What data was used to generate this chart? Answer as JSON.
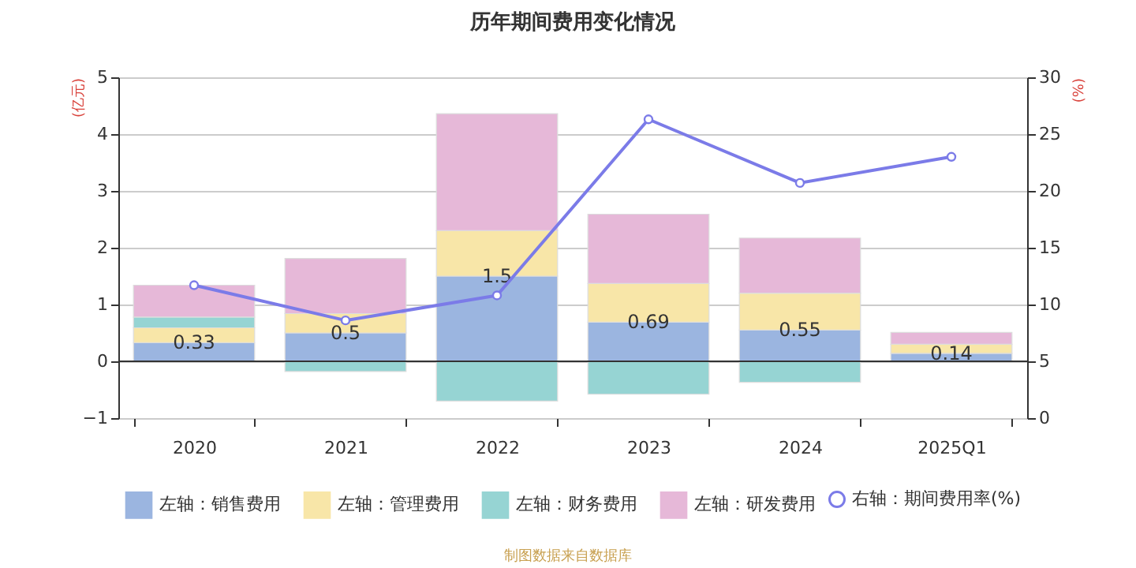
{
  "chart_data": {
    "type": "bar",
    "stacked": true,
    "title": "历年期间费用变化情况",
    "ylabel": "(亿元)",
    "y2label": "(%)",
    "categories": [
      "2020",
      "2021",
      "2022",
      "2023",
      "2024",
      "2025Q1"
    ],
    "series": [
      {
        "name": "左轴：销售费用",
        "color": "#9bb5e0",
        "values": [
          0.33,
          0.5,
          1.5,
          0.69,
          0.55,
          0.14
        ],
        "value_labels": [
          "0.33",
          "0.5",
          "1.5",
          "0.69",
          "0.55",
          "0.14"
        ]
      },
      {
        "name": "左轴：管理费用",
        "color": "#f8e6a8",
        "values": [
          0.26,
          0.34,
          0.8,
          0.68,
          0.65,
          0.16
        ]
      },
      {
        "name": "左轴：财务费用",
        "color": "#96d4d3",
        "values": [
          0.19,
          -0.18,
          -0.7,
          -0.58,
          -0.37,
          0
        ]
      },
      {
        "name": "左轴：研发费用",
        "color": "#e6b8d8",
        "values": [
          0.56,
          0.97,
          2.06,
          1.22,
          0.97,
          0.21
        ]
      },
      {
        "name": "右轴：期间费用率(%)",
        "type": "line",
        "axis": "y2",
        "color": "#7b7be8",
        "values": [
          11.7,
          8.6,
          10.8,
          26.3,
          20.7,
          23.0
        ]
      }
    ],
    "ylim": [
      -1,
      5
    ],
    "yticks": [
      -1,
      0,
      1,
      2,
      3,
      4,
      5
    ],
    "y2lim": [
      0,
      30
    ],
    "y2ticks": [
      0,
      5,
      10,
      15,
      20,
      25,
      30
    ],
    "grid": "y",
    "legend": "bottom",
    "marker": "circle",
    "line_style": "solid",
    "annotations": [
      "制图数据来自数据库"
    ]
  }
}
